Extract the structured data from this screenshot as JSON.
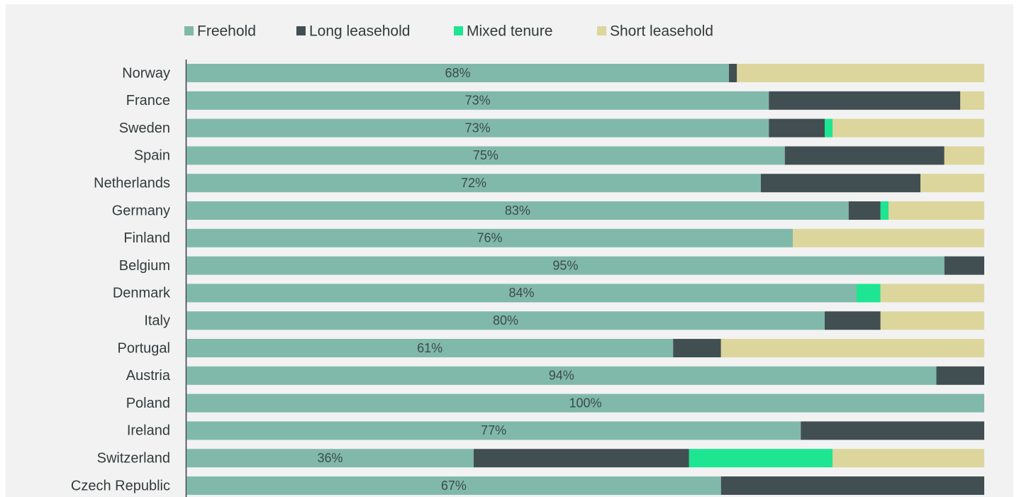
{
  "chart_data": {
    "type": "stacked-bar",
    "categories": [
      "Norway",
      "France",
      "Sweden",
      "Spain",
      "Netherlands",
      "Germany",
      "Finland",
      "Belgium",
      "Denmark",
      "Italy",
      "Portugal",
      "Austria",
      "Poland",
      "Ireland",
      "Switzerland",
      "Czech Republic"
    ],
    "series": [
      {
        "name": "Freehold",
        "color": "#80b9aa",
        "values": [
          68,
          73,
          73,
          75,
          72,
          83,
          76,
          95,
          84,
          80,
          61,
          94,
          100,
          77,
          36,
          67
        ],
        "value_labels": [
          "68%",
          "73%",
          "73%",
          "75%",
          "72%",
          "83%",
          "76%",
          "95%",
          "84%",
          "80%",
          "61%",
          "94%",
          "100%",
          "77%",
          "36%",
          "67%"
        ]
      },
      {
        "name": "Long leasehold",
        "color": "#414f52",
        "values": [
          1,
          24,
          7,
          20,
          20,
          4,
          0,
          5,
          0,
          7,
          6,
          6,
          0,
          23,
          27,
          33
        ]
      },
      {
        "name": "Mixed tenure",
        "color": "#1de592",
        "values": [
          0,
          0,
          1,
          0,
          0,
          1,
          0,
          0,
          3,
          0,
          0,
          0,
          0,
          0,
          18,
          0
        ]
      },
      {
        "name": "Short leasehold",
        "color": "#dcd69c",
        "values": [
          31,
          3,
          19,
          5,
          8,
          12,
          24,
          0,
          13,
          13,
          33,
          0,
          0,
          0,
          19,
          0
        ]
      }
    ]
  }
}
